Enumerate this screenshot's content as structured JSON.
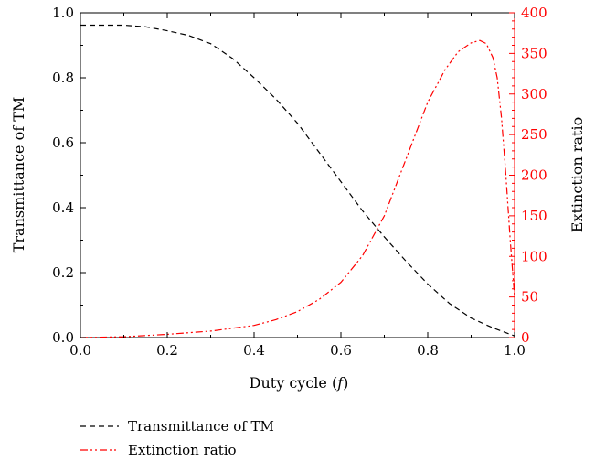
{
  "chart_data": {
    "type": "line",
    "xlabel_prefix": "Duty cycle (",
    "xlabel_var": "f",
    "xlabel_suffix": ")",
    "ylabel_left": "Transmittance of TM",
    "ylabel_right": "Extinction ratio",
    "xlim": [
      0.0,
      1.0
    ],
    "ylim_left": [
      0.0,
      1.0
    ],
    "ylim_right": [
      0,
      400
    ],
    "x_ticks": [
      "0.0",
      "0.2",
      "0.4",
      "0.6",
      "0.8",
      "1.0"
    ],
    "y_left_ticks": [
      "0.0",
      "0.2",
      "0.4",
      "0.6",
      "0.8",
      "1.0"
    ],
    "y_right_ticks": [
      "0",
      "50",
      "100",
      "150",
      "200",
      "250",
      "300",
      "350",
      "400"
    ],
    "grid": false,
    "legend_position": "bottom-left, below plot",
    "series": [
      {
        "name": "Transmittance of TM",
        "axis": "left",
        "color": "#000000",
        "style": "dashed",
        "x": [
          0.0,
          0.05,
          0.1,
          0.15,
          0.2,
          0.25,
          0.3,
          0.35,
          0.4,
          0.45,
          0.5,
          0.55,
          0.6,
          0.65,
          0.7,
          0.75,
          0.8,
          0.85,
          0.9,
          0.95,
          1.0
        ],
        "y": [
          0.962,
          0.962,
          0.962,
          0.957,
          0.945,
          0.93,
          0.905,
          0.86,
          0.8,
          0.735,
          0.66,
          0.57,
          0.48,
          0.39,
          0.31,
          0.235,
          0.165,
          0.105,
          0.06,
          0.03,
          0.005
        ]
      },
      {
        "name": "Extinction ratio",
        "axis": "right",
        "color": "#ff0000",
        "style": "dash-dot-dot",
        "x": [
          0.0,
          0.1,
          0.2,
          0.3,
          0.4,
          0.45,
          0.5,
          0.55,
          0.6,
          0.65,
          0.7,
          0.75,
          0.8,
          0.84,
          0.87,
          0.9,
          0.92,
          0.935,
          0.95,
          0.96,
          0.97,
          0.98,
          0.99,
          1.0
        ],
        "y": [
          0,
          1,
          4,
          8,
          15,
          22,
          32,
          47,
          68,
          101,
          150,
          220,
          290,
          330,
          352,
          363,
          366,
          362,
          345,
          320,
          270,
          200,
          120,
          50
        ]
      }
    ]
  }
}
